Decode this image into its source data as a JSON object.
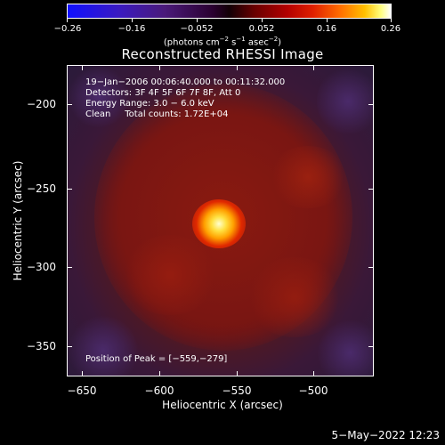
{
  "colorbar": {
    "ticks": [
      "−0.26",
      "−0.16",
      "−0.052",
      "0.052",
      "0.16",
      "0.26"
    ],
    "unit_prefix": "(photons cm",
    "unit_exp1": "−2",
    "unit_mid": " s",
    "unit_exp2": "−1",
    "unit_mid2": " asec",
    "unit_exp3": "−2",
    "unit_suffix": ")"
  },
  "title": "Reconstructed RHESSI Image",
  "info": {
    "line1": "19−Jan−2006 00:06:40.000 to 00:11:32.000",
    "line2": "Detectors: 3F 4F 5F 6F 7F 8F, Att 0",
    "line3": "Energy Range: 3.0 − 6.0 keV",
    "line4": "Clean     Total counts: 1.72E+04",
    "peak": "Position of Peak = [−559,−279]"
  },
  "axes": {
    "xlabel": "Heliocentric X (arcsec)",
    "ylabel": "Heliocentric Y (arcsec)",
    "xticks": [
      "−650",
      "−600",
      "−550",
      "−500"
    ],
    "yticks": [
      "−200",
      "−250",
      "−300",
      "−350"
    ]
  },
  "datestamp": "5−May−2022 12:23"
}
